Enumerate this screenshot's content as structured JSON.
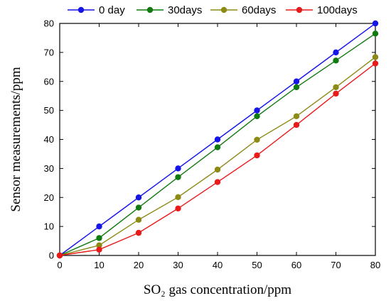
{
  "chart_data": {
    "type": "line",
    "xlabel": "SO₂ gas concentration/ppm",
    "ylabel": "Sensor measurements/ppm",
    "xlim": [
      0,
      80
    ],
    "ylim": [
      0,
      80
    ],
    "xticks": [
      0,
      10,
      20,
      30,
      40,
      50,
      60,
      70,
      80
    ],
    "yticks": [
      0,
      10,
      20,
      30,
      40,
      50,
      60,
      70,
      80
    ],
    "grid": false,
    "legend_position": "top",
    "x": [
      0,
      10,
      20,
      30,
      40,
      50,
      60,
      70,
      80
    ],
    "series": [
      {
        "name": "0 day",
        "color": "#1515e8",
        "values": [
          0,
          10,
          20,
          30,
          40,
          50,
          60,
          70,
          80
        ]
      },
      {
        "name": "30days",
        "color": "#0f7a0f",
        "values": [
          0,
          6,
          16.5,
          27,
          37.3,
          48,
          58,
          67.2,
          76.5
        ]
      },
      {
        "name": "60days",
        "color": "#8c8a15",
        "values": [
          0,
          3.5,
          12.3,
          20.1,
          29.6,
          39.9,
          48,
          58,
          68.4
        ]
      },
      {
        "name": "100days",
        "color": "#e81a1a",
        "values": [
          0,
          2,
          7.8,
          16.2,
          25.3,
          34.5,
          45,
          55.8,
          66.2
        ]
      }
    ]
  }
}
